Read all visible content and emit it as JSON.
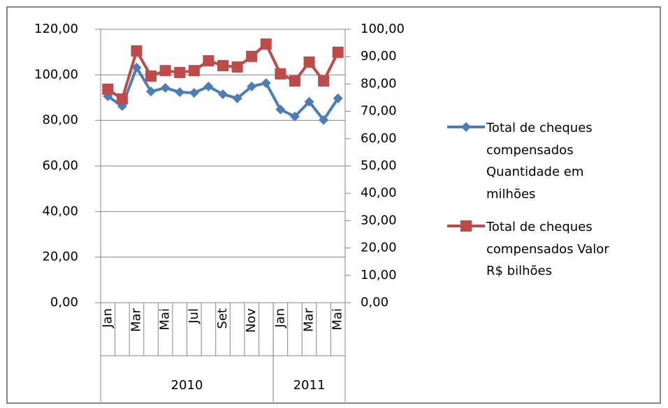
{
  "chart_data": {
    "type": "line",
    "categories": [
      "Jan",
      null,
      "Mar",
      null,
      "Mai",
      null,
      "Jul",
      null,
      "Set",
      null,
      "Nov",
      null,
      "Jan",
      null,
      "Mar",
      null,
      "Mai"
    ],
    "x_groups": [
      {
        "label": "2010",
        "count": 12
      },
      {
        "label": "2011",
        "count": 5
      }
    ],
    "series": [
      {
        "name": "Total de cheques compensados Quantidade em milhões",
        "color": "#4a7ebb",
        "marker": "diamond",
        "values": [
          90.6,
          86.3,
          103.2,
          92.7,
          94.3,
          92.4,
          92.1,
          94.9,
          91.5,
          89.7,
          94.9,
          96.4,
          84.8,
          81.7,
          88.2,
          80.2,
          89.7
        ]
      },
      {
        "name": "Total de cheques compensados Valor R$ bilhões",
        "color": "#be4b48",
        "marker": "square",
        "axis": "y2",
        "values": [
          78.1,
          74.5,
          92.1,
          82.9,
          84.9,
          84.2,
          84.9,
          88.5,
          86.7,
          86.2,
          90.1,
          94.6,
          83.7,
          81.1,
          88.0,
          81.1,
          91.6
        ]
      }
    ],
    "ylim": [
      0,
      120
    ],
    "yticks": [
      {
        "value": 0,
        "label": "0,00"
      },
      {
        "value": 20,
        "label": "20,00"
      },
      {
        "value": 40,
        "label": "40,00"
      },
      {
        "value": 60,
        "label": "60,00"
      },
      {
        "value": 80,
        "label": "80,00"
      },
      {
        "value": 100,
        "label": "100,00"
      },
      {
        "value": 120,
        "label": "120,00"
      }
    ],
    "y2lim": [
      0,
      100
    ],
    "y2ticks": [
      {
        "value": 0,
        "label": "0,00"
      },
      {
        "value": 10,
        "label": "10,00"
      },
      {
        "value": 20,
        "label": "20,00"
      },
      {
        "value": 30,
        "label": "30,00"
      },
      {
        "value": 40,
        "label": "40,00"
      },
      {
        "value": 50,
        "label": "50,00"
      },
      {
        "value": 60,
        "label": "60,00"
      },
      {
        "value": 70,
        "label": "70,00"
      },
      {
        "value": 80,
        "label": "80,00"
      },
      {
        "value": 90,
        "label": "90,00"
      },
      {
        "value": 100,
        "label": "100,00"
      }
    ],
    "grid": true,
    "legend": "right"
  }
}
